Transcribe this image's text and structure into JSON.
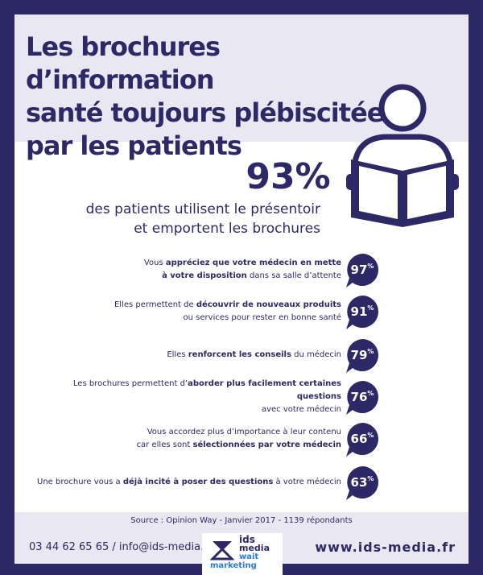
{
  "title_lines": [
    "Les brochures d’information",
    "santé toujours plébiscitées",
    "par les patients"
  ],
  "headline": {
    "value": "93%",
    "text_lines": [
      "des patients utilisent le présentoir",
      "et emportent les brochures"
    ]
  },
  "stats": [
    {
      "pre": "Vous ",
      "bold": "appréciez que votre médecin en mette",
      "break": true,
      "bold2": "à votre disposition",
      "post": " dans sa salle d’attente",
      "value": "97",
      "unit": "%"
    },
    {
      "pre": "Elles permettent de ",
      "bold": "découvrir de nouveaux produits",
      "break": true,
      "bold2": "",
      "post": "ou services pour rester en bonne santé",
      "value": "91",
      "unit": "%"
    },
    {
      "pre": "Elles ",
      "bold": "renforcent les conseils",
      "break": false,
      "bold2": "",
      "post": " du médecin",
      "value": "79",
      "unit": "%"
    },
    {
      "pre": "Les brochures permettent d’",
      "bold": "aborder plus facilement certaines questions",
      "break": true,
      "bold2": "",
      "post": "avec votre médecin",
      "value": "76",
      "unit": "%"
    },
    {
      "pre": "Vous accordez plus d’importance à leur contenu",
      "bold": "",
      "break": true,
      "bold2": "",
      "post": "car elles sont ",
      "bold3": "sélectionnées par votre médecin",
      "value": "66",
      "unit": "%"
    },
    {
      "pre": "Une brochure vous a ",
      "bold": "déjà incité à poser des questions",
      "break": false,
      "bold2": "",
      "post": " à votre médecin",
      "value": "63",
      "unit": "%"
    }
  ],
  "source": "Source : Opinion Way - Janvier 2017 - 1139 répondants",
  "footer": {
    "contact": "03 44 62 65 65 / info@ids-media.fr",
    "logo_lines": [
      "ids",
      "media",
      "wait",
      "marketing"
    ],
    "website": "www.ids-media.fr"
  },
  "colors": {
    "navy": "#2d2966",
    "band": "#e9e8f2",
    "white": "#ffffff"
  },
  "icons": [
    "person-reading-icon",
    "speech-bubble-icon"
  ]
}
